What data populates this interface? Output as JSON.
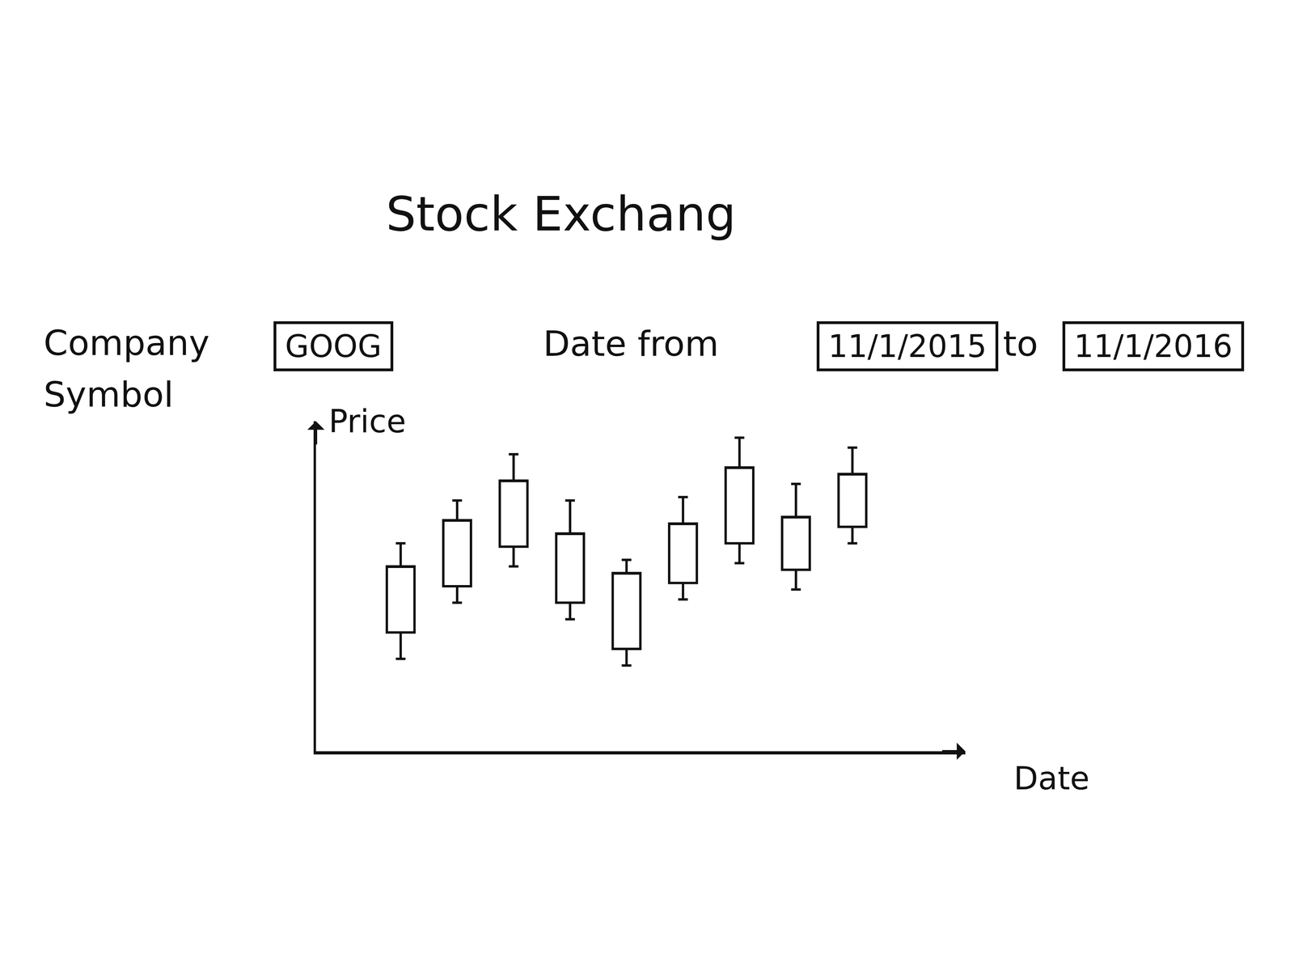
{
  "title": "Stock Exchang",
  "form": {
    "symbol_label": "Company Symbol",
    "symbol": "GOOG",
    "date_label": "Date from",
    "date_from": "11/1/2015",
    "to_label": "to",
    "date_to": "11/1/2016"
  },
  "chart_data": {
    "type": "candlestick",
    "x_label": "Date",
    "y_label": "Price",
    "categories": [
      null,
      null,
      null,
      null,
      null,
      null,
      null,
      null,
      null
    ],
    "open": [
      36,
      50,
      62,
      45,
      31,
      51,
      63,
      55,
      68
    ],
    "high": [
      63,
      76,
      90,
      76,
      58,
      77,
      95,
      81,
      92
    ],
    "low": [
      28,
      45,
      56,
      40,
      26,
      46,
      57,
      49,
      63
    ],
    "close": [
      56,
      70,
      82,
      66,
      54,
      69,
      86,
      71,
      84
    ],
    "color": "#111111",
    "xlim": [
      -1.5,
      10
    ],
    "ylim": [
      0,
      100
    ],
    "grid": false,
    "tick_labels": false
  }
}
